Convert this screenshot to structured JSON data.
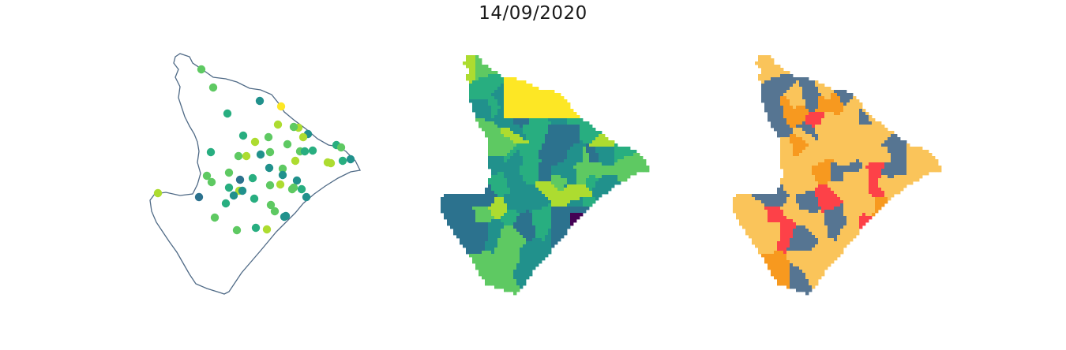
{
  "figure": {
    "title": "14/09/2020"
  },
  "colors": {
    "outline": "#4f6a86",
    "viridis": [
      "#440154",
      "#3b528b",
      "#2c728e",
      "#21918c",
      "#28ae80",
      "#5ec962",
      "#addc30",
      "#fde725"
    ],
    "risk": [
      "#fac45a",
      "#f7991f",
      "#fd4148",
      "#567592"
    ]
  },
  "panels": [
    {
      "kind": "points",
      "points": [
        {
          "c": 5
        },
        {
          "c": 5
        },
        {
          "c": 4
        },
        {
          "c": 3
        },
        {
          "c": 7
        },
        {
          "c": 6
        },
        {
          "c": 5
        },
        {
          "c": 6
        },
        {
          "c": 4
        },
        {
          "c": 5
        },
        {
          "c": 3
        },
        {
          "c": 6
        },
        {
          "c": 5
        },
        {
          "c": 6
        },
        {
          "c": 4
        },
        {
          "c": 5
        },
        {
          "c": 6
        },
        {
          "c": 3
        },
        {
          "c": 5
        },
        {
          "c": 5
        },
        {
          "c": 4
        },
        {
          "c": 4
        },
        {
          "c": 6
        },
        {
          "c": 5
        },
        {
          "c": 3
        },
        {
          "c": 5
        },
        {
          "c": 6
        },
        {
          "c": 4
        },
        {
          "c": 5
        },
        {
          "c": 3
        },
        {
          "c": 4
        },
        {
          "c": 6
        },
        {
          "c": 5
        },
        {
          "c": 2
        },
        {
          "c": 4
        },
        {
          "c": 3
        },
        {
          "c": 5
        },
        {
          "c": 6
        },
        {
          "c": 4
        },
        {
          "c": 5
        },
        {
          "c": 6
        },
        {
          "c": 5
        },
        {
          "c": 3
        },
        {
          "c": 4
        },
        {
          "c": 2
        },
        {
          "c": 3
        },
        {
          "c": 5
        },
        {
          "c": 3
        },
        {
          "c": 4
        },
        {
          "c": 5
        },
        {
          "c": 3
        },
        {
          "c": 4
        },
        {
          "c": 5
        },
        {
          "c": 3
        },
        {
          "c": 5
        },
        {
          "c": 3
        },
        {
          "c": 6
        },
        {
          "c": 5
        },
        {
          "c": 4
        },
        {
          "c": 6
        }
      ]
    },
    {
      "kind": "choropleth-viridis"
    },
    {
      "kind": "choropleth-risk"
    }
  ]
}
